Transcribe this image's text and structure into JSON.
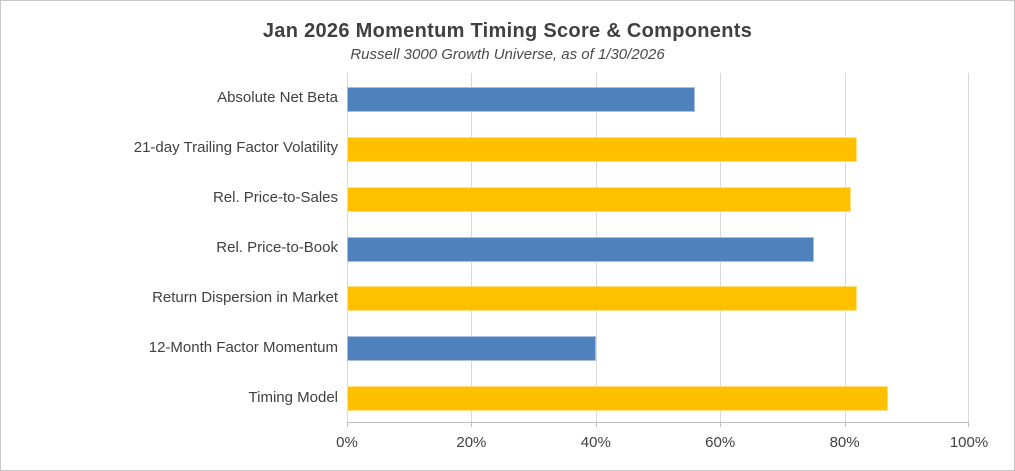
{
  "chart_data": {
    "type": "bar",
    "orientation": "horizontal",
    "title": "Jan 2026 Momentum Timing Score & Components",
    "subtitle": "Russell 3000 Growth Universe, as of 1/30/2026",
    "categories": [
      "Absolute Net Beta",
      "21-day Trailing Factor Volatility",
      "Rel. Price-to-Sales",
      "Rel. Price-to-Book",
      "Return Dispersion in Market",
      "12-Month Factor Momentum",
      "Timing Model"
    ],
    "values": [
      56,
      82,
      81,
      75,
      82,
      40,
      87
    ],
    "value_unit": "%",
    "bar_colors": [
      "#4F81BD",
      "#FFC000",
      "#FFC000",
      "#4F81BD",
      "#FFC000",
      "#4F81BD",
      "#FFC000"
    ],
    "xlim": [
      0,
      100
    ],
    "x_ticks": [
      0,
      20,
      40,
      60,
      80,
      100
    ],
    "x_tick_labels": [
      "0%",
      "20%",
      "40%",
      "60%",
      "80%",
      "100%"
    ],
    "grid": "vertical",
    "legend": false
  },
  "style": {
    "accent_blue": "#4F81BD",
    "accent_gold": "#FFC000",
    "text_color": "#404040",
    "gridline_color": "#D9D9D9",
    "axis_color": "#BFBFBF",
    "background": "#FFFFFF",
    "border_color": "#C6C6C6"
  }
}
